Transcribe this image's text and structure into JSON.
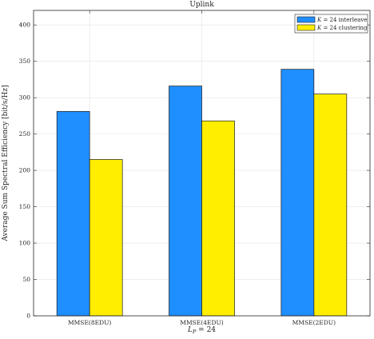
{
  "chart_data": {
    "type": "bar",
    "title": "Uplink",
    "xlabel": "L_P = 24",
    "ylabel": "Average Sum Spectral Efficiency [bit/s/Hz]",
    "categories": [
      "MMSE(8EDU)",
      "MMSE(4EDU)",
      "MMSE(2EDU)"
    ],
    "series": [
      {
        "name": "K = 24 interleave",
        "values": [
          281,
          316,
          339
        ],
        "color": "#1f8fff"
      },
      {
        "name": "K = 24 clustering",
        "values": [
          215,
          268,
          305
        ],
        "color": "#ffee00"
      }
    ],
    "ylim": [
      0,
      420
    ],
    "yticks": [
      0,
      50,
      100,
      150,
      200,
      250,
      300,
      350,
      400
    ],
    "grid": true,
    "legend_position": "top-right"
  }
}
